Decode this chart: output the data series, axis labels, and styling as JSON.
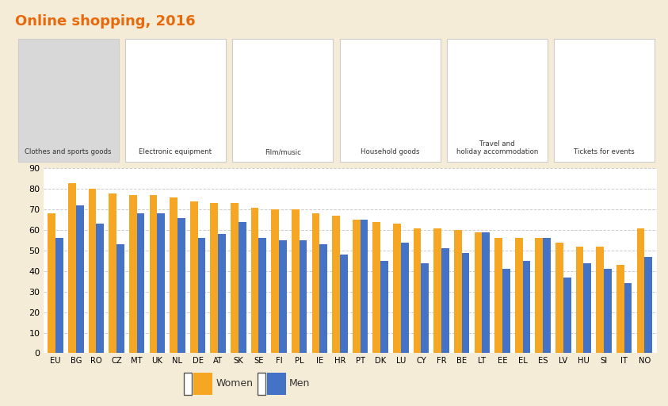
{
  "title": "Online shopping, 2016",
  "categories": [
    "EU",
    "BG",
    "RO",
    "CZ",
    "MT",
    "UK",
    "NL",
    "DE",
    "AT",
    "SK",
    "SE",
    "FI",
    "PL",
    "IE",
    "HR",
    "PT",
    "DK",
    "LU",
    "CY",
    "FR",
    "BE",
    "LT",
    "EE",
    "EL",
    "ES",
    "LV",
    "HU",
    "SI",
    "IT",
    "NO"
  ],
  "women": [
    68,
    83,
    80,
    78,
    77,
    77,
    76,
    74,
    73,
    73,
    71,
    70,
    70,
    68,
    67,
    65,
    64,
    63,
    61,
    61,
    60,
    59,
    56,
    56,
    56,
    54,
    52,
    52,
    43,
    61
  ],
  "men": [
    56,
    72,
    63,
    53,
    68,
    68,
    66,
    56,
    58,
    64,
    56,
    55,
    55,
    53,
    48,
    65,
    45,
    54,
    44,
    51,
    49,
    59,
    41,
    45,
    56,
    37,
    44,
    41,
    34,
    47
  ],
  "women_color": "#F5A623",
  "men_color": "#4472C4",
  "background_color": "#F5ECD7",
  "plot_bg_color": "#FFFFFF",
  "chart_border_color": "#CCCCCC",
  "title_color": "#E8690B",
  "grid_color": "#CCCCCC",
  "ylim": [
    0,
    90
  ],
  "yticks": [
    0,
    10,
    20,
    30,
    40,
    50,
    60,
    70,
    80,
    90
  ],
  "tab_labels": [
    "Clothes and sports goods",
    "Electronic equipment",
    "Film/music",
    "Household goods",
    "Travel and\nholiday accommodation",
    "Tickets for events"
  ],
  "active_tab": 0,
  "active_tab_color": "#D8D8D8",
  "inactive_tab_color": "#FFFFFF",
  "tab_border_color": "#CCCCCC"
}
